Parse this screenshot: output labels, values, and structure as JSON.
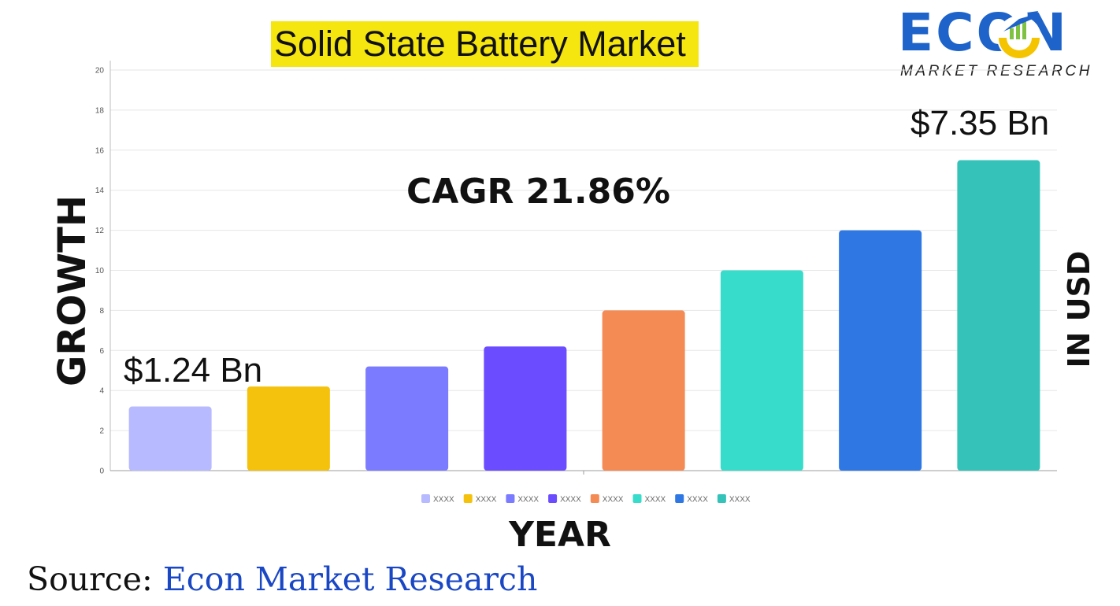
{
  "title": "Solid State Battery Market",
  "logo": {
    "text_main": "ECON",
    "text_sub": "MARKET RESEARCH"
  },
  "y_axis_label": "GROWTH",
  "right_label": "IN USD",
  "x_axis_label": "YEAR",
  "annotations": {
    "start_value": "$1.24 Bn",
    "end_value": "$7.35 Bn",
    "cagr": "CAGR 21.86%"
  },
  "source": {
    "prefix": "Source",
    "separator": ": ",
    "name": "Econ Market Research"
  },
  "chart_data": {
    "type": "bar",
    "categories": [
      "XXXX",
      "XXXX",
      "XXXX",
      "XXXX",
      "XXXX",
      "XXXX",
      "XXXX",
      "XXXX"
    ],
    "values": [
      3.2,
      4.2,
      5.2,
      6.2,
      8,
      10,
      12,
      15.5
    ],
    "colors": [
      "#b8baff",
      "#f4c20d",
      "#7b7bff",
      "#6b4cff",
      "#f48b55",
      "#38dccb",
      "#2f78e4",
      "#35c3b9"
    ],
    "ylim": [
      0,
      20
    ],
    "yticks": [
      0,
      2,
      4,
      6,
      8,
      10,
      12,
      14,
      16,
      18,
      20
    ],
    "grid": true,
    "legend": {
      "position": "bottom",
      "labels": [
        "XXXX",
        "XXXX",
        "XXXX",
        "XXXX",
        "XXXX",
        "XXXX",
        "XXXX",
        "XXXX"
      ]
    }
  }
}
